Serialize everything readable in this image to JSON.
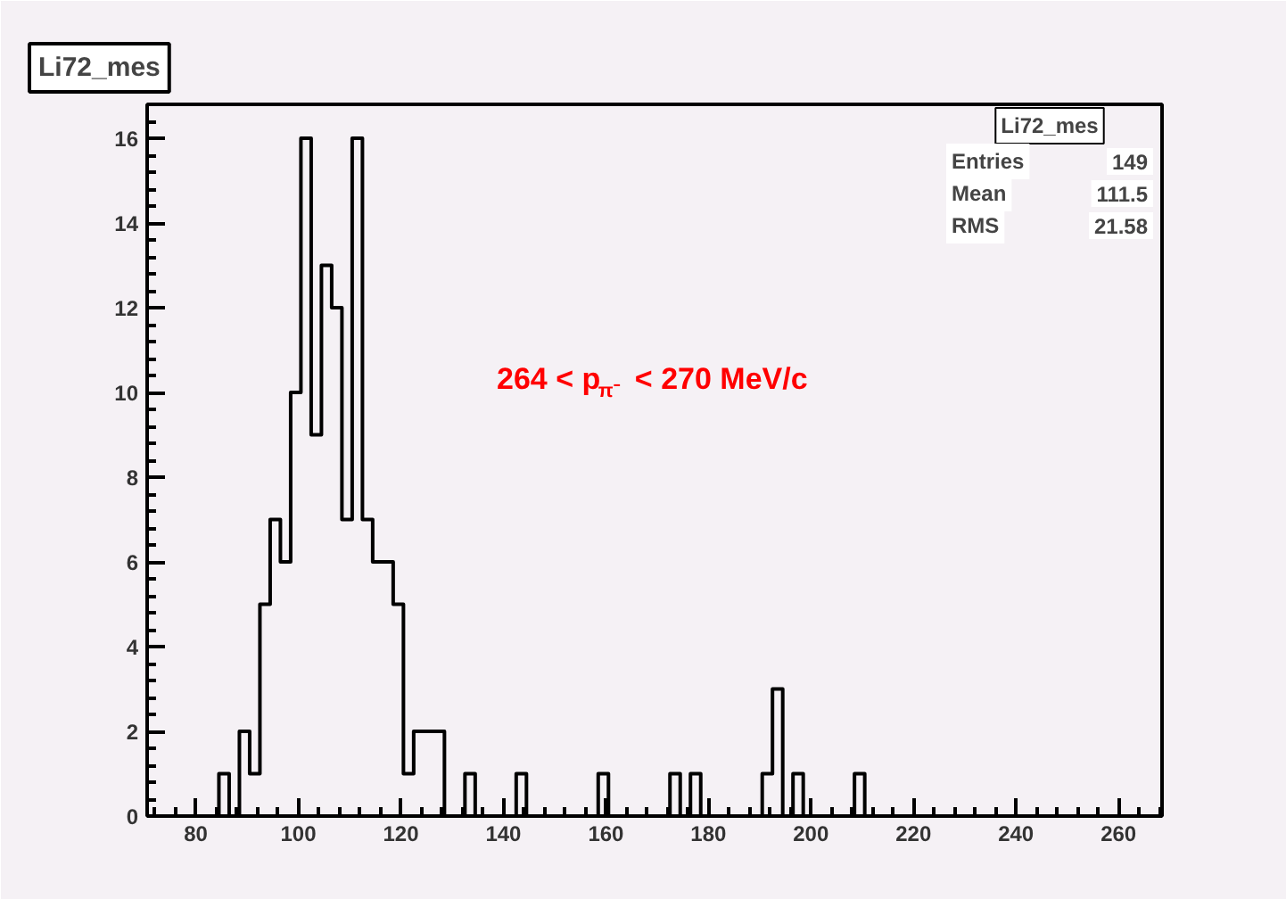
{
  "chart_data": {
    "type": "histogram",
    "title": "Li72_mes",
    "bins": [
      70.5,
      72.5,
      74.5,
      76.5,
      78.5,
      80.5,
      82.5,
      84.5,
      86.5,
      88.5,
      90.5,
      92.5,
      94.5,
      96.5,
      98.5,
      100.5,
      102.5,
      104.5,
      106.5,
      108.5,
      110.5,
      112.5,
      114.5,
      116.5,
      118.5,
      120.5,
      122.5,
      124.5,
      126.5,
      128.5,
      130.5,
      132.5,
      134.5,
      136.5,
      138.5,
      140.5,
      142.5,
      144.5,
      146.5,
      148.5,
      150.5,
      152.5,
      154.5,
      156.5,
      158.5,
      160.5,
      162.5,
      164.5,
      166.5,
      168.5,
      170.5,
      172.5,
      174.5,
      176.5,
      178.5,
      180.5,
      182.5,
      184.5,
      186.5,
      188.5,
      190.5,
      192.5,
      194.5,
      196.5,
      198.5,
      200.5,
      202.5,
      204.5,
      206.5,
      208.5,
      210.5,
      212.5,
      214.5,
      216.5,
      218.5,
      220.5,
      222.5,
      224.5,
      226.5,
      228.5,
      230.5,
      232.5,
      234.5,
      236.5,
      238.5,
      240.5,
      242.5,
      244.5,
      246.5,
      248.5,
      250.5,
      252.5,
      254.5,
      256.5,
      258.5,
      260.5,
      262.5,
      264.5,
      266.5,
      268.5
    ],
    "values": [
      0,
      0,
      0,
      0,
      0,
      0,
      0,
      1,
      0,
      2,
      1,
      5,
      7,
      6,
      10,
      16,
      9,
      13,
      12,
      7,
      16,
      7,
      6,
      6,
      5,
      1,
      2,
      2,
      2,
      0,
      0,
      1,
      0,
      0,
      0,
      0,
      1,
      0,
      0,
      0,
      0,
      0,
      0,
      0,
      1,
      0,
      0,
      0,
      0,
      0,
      0,
      1,
      0,
      1,
      0,
      0,
      0,
      0,
      0,
      0,
      1,
      3,
      0,
      1,
      0,
      0,
      0,
      0,
      0,
      1,
      0,
      0,
      0,
      0,
      0,
      0,
      0,
      0,
      0,
      0,
      0,
      0,
      0,
      0,
      0,
      0,
      0,
      0,
      0,
      0,
      0,
      0,
      0,
      0,
      0,
      0,
      0,
      0,
      0
    ],
    "color": "#000000",
    "xlim": [
      70.5,
      268.5
    ],
    "xticks": [
      80,
      100,
      120,
      140,
      160,
      180,
      200,
      220,
      240,
      260
    ],
    "ylim": [
      0,
      16.8
    ],
    "yticks": [
      0,
      2,
      4,
      6,
      8,
      10,
      12,
      14,
      16
    ],
    "grid": false,
    "annotations": [
      "Li72_mes",
      "Entries 149",
      "Mean 111.5",
      "RMS 21.58",
      "264 < p$_{π⁻}$ < 270 MeV/c"
    ]
  }
}
